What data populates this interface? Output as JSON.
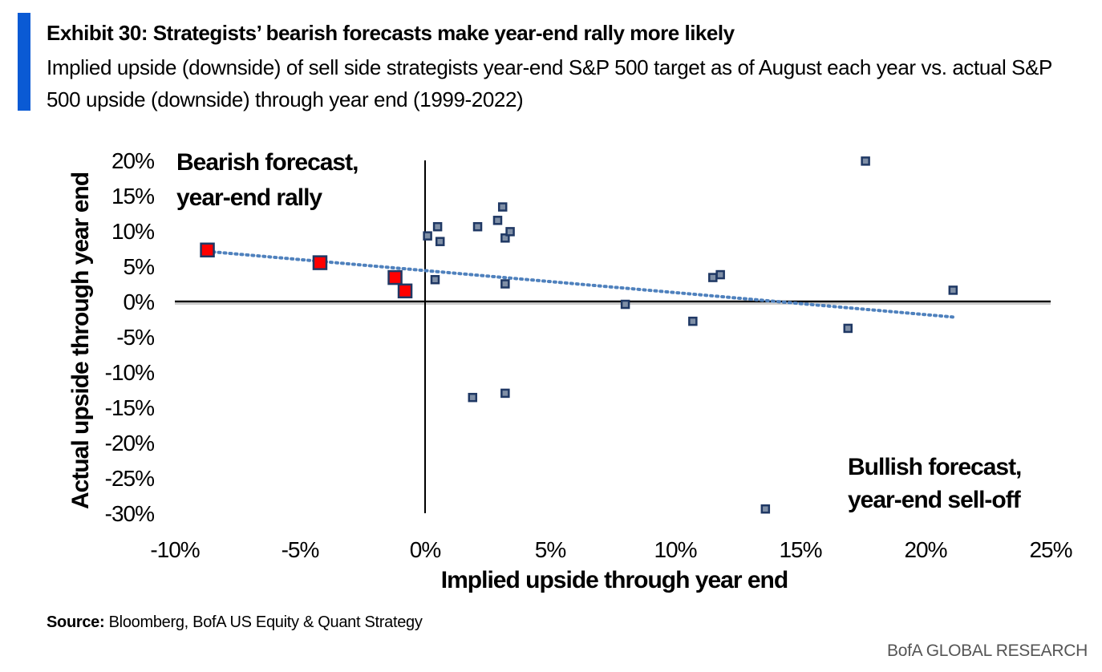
{
  "header": {
    "title": "Exhibit 30: Strategists’ bearish forecasts make year-end rally  more likely",
    "subtitle": "Implied upside (downside) of sell side strategists year-end S&P 500 target as of August each year vs. actual S&P 500 upside (downside) through year end (1999-2022)"
  },
  "source": {
    "label": "Source:",
    "text": " Bloomberg, BofA US Equity & Quant Strategy"
  },
  "footer": {
    "brand": "BofA GLOBAL RESEARCH"
  },
  "colors": {
    "accent": "#0a5ad4",
    "marker": "#1f3864",
    "highlight": "#ff0000",
    "trend": "#4f81bd"
  },
  "chart_data": {
    "type": "scatter",
    "xlabel": "Implied upside through year end",
    "ylabel": "Actual upside through year end",
    "xlim": [
      -10,
      25
    ],
    "ylim": [
      -30,
      20
    ],
    "x_ticks": [
      "-10%",
      "-5%",
      "0%",
      "5%",
      "10%",
      "15%",
      "20%",
      "25%"
    ],
    "y_ticks": [
      "20%",
      "15%",
      "10%",
      "5%",
      "0%",
      "-5%",
      "-10%",
      "-15%",
      "-20%",
      "-25%",
      "-30%"
    ],
    "annotations": [
      {
        "lines": [
          "Bearish forecast,",
          "year-end rally"
        ]
      },
      {
        "lines": [
          "Bullish forecast,",
          "year-end sell-off"
        ]
      }
    ],
    "trendline": {
      "style": "dotted",
      "x": [
        -8.7,
        21.1
      ],
      "y": [
        7.1,
        -2.2
      ]
    },
    "series": [
      {
        "points": [
          [
            0.1,
            9.3
          ],
          [
            0.5,
            10.6
          ],
          [
            0.6,
            8.5
          ],
          [
            0.4,
            3.1
          ],
          [
            2.1,
            10.6
          ],
          [
            2.9,
            11.5
          ],
          [
            3.1,
            13.4
          ],
          [
            3.2,
            9.0
          ],
          [
            3.4,
            9.9
          ],
          [
            3.2,
            2.5
          ],
          [
            1.9,
            -13.6
          ],
          [
            3.2,
            -13.0
          ],
          [
            8.0,
            -0.4
          ],
          [
            10.7,
            -2.8
          ],
          [
            11.5,
            3.4
          ],
          [
            11.8,
            3.8
          ],
          [
            13.6,
            -29.4
          ],
          [
            16.9,
            -3.8
          ],
          [
            17.6,
            19.9
          ],
          [
            21.1,
            1.6
          ]
        ]
      },
      {
        "highlight": true,
        "points": [
          [
            -8.7,
            7.3
          ],
          [
            -4.2,
            5.5
          ],
          [
            -1.2,
            3.4
          ],
          [
            -0.8,
            1.5
          ]
        ]
      }
    ]
  }
}
